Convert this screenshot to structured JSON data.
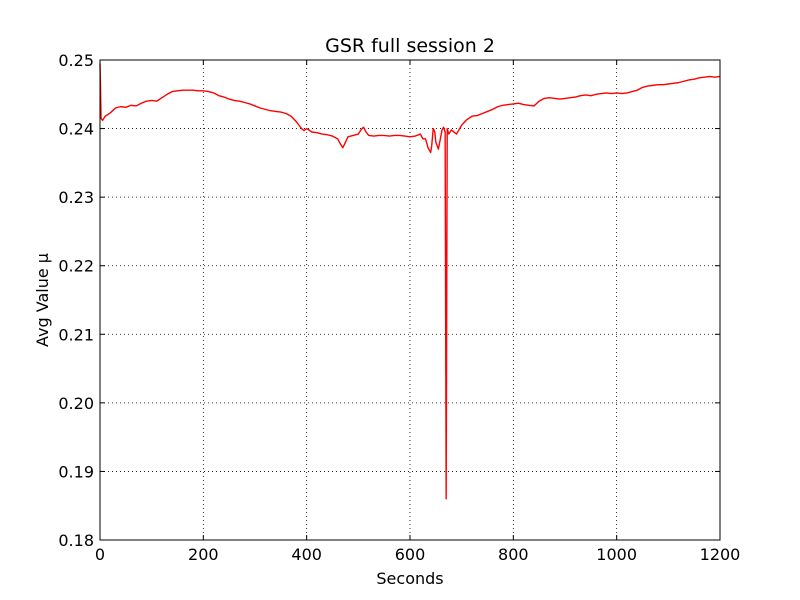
{
  "chart_data": {
    "type": "line",
    "title": "GSR full session 2",
    "xlabel": "Seconds",
    "ylabel": "Avg Value µ",
    "xlim": [
      0,
      1200
    ],
    "ylim": [
      0.18,
      0.25
    ],
    "xticks": [
      0,
      200,
      400,
      600,
      800,
      1000,
      1200
    ],
    "xtick_labels": [
      "0",
      "200",
      "400",
      "600",
      "800",
      "1000",
      "1200"
    ],
    "yticks": [
      0.18,
      0.19,
      0.2,
      0.21,
      0.22,
      0.23,
      0.24,
      0.25
    ],
    "ytick_labels": [
      "0.18",
      "0.19",
      "0.20",
      "0.21",
      "0.22",
      "0.23",
      "0.24",
      "0.25"
    ],
    "grid": true,
    "legend": "none",
    "series": [
      {
        "color": "#ff0000",
        "x": [
          0,
          1,
          2,
          5,
          10,
          20,
          30,
          40,
          50,
          60,
          70,
          80,
          90,
          100,
          110,
          120,
          130,
          140,
          150,
          160,
          170,
          180,
          190,
          200,
          210,
          220,
          230,
          240,
          250,
          260,
          270,
          280,
          290,
          300,
          310,
          320,
          330,
          340,
          350,
          360,
          370,
          380,
          385,
          390,
          395,
          400,
          410,
          420,
          430,
          440,
          450,
          460,
          465,
          470,
          475,
          480,
          490,
          500,
          505,
          510,
          515,
          520,
          530,
          540,
          550,
          560,
          570,
          580,
          590,
          600,
          610,
          620,
          625,
          630,
          635,
          640,
          642,
          645,
          648,
          650,
          655,
          660,
          662,
          665,
          668,
          670,
          672,
          675,
          680,
          690,
          700,
          710,
          720,
          730,
          740,
          750,
          760,
          770,
          780,
          790,
          800,
          810,
          820,
          830,
          840,
          850,
          860,
          870,
          880,
          890,
          900,
          910,
          920,
          930,
          940,
          950,
          960,
          970,
          980,
          990,
          1000,
          1010,
          1020,
          1030,
          1040,
          1050,
          1060,
          1070,
          1080,
          1090,
          1100,
          1110,
          1120,
          1130,
          1140,
          1150,
          1160,
          1170,
          1180,
          1190,
          1200
        ],
        "y": [
          0.2495,
          0.246,
          0.2415,
          0.2412,
          0.2418,
          0.2423,
          0.243,
          0.2432,
          0.2431,
          0.2434,
          0.2433,
          0.2437,
          0.244,
          0.2441,
          0.244,
          0.2445,
          0.245,
          0.2454,
          0.2455,
          0.2456,
          0.2456,
          0.2456,
          0.2455,
          0.2455,
          0.2454,
          0.2452,
          0.2448,
          0.2446,
          0.2443,
          0.2441,
          0.244,
          0.2438,
          0.2436,
          0.2433,
          0.243,
          0.2428,
          0.2426,
          0.2425,
          0.2424,
          0.2422,
          0.2418,
          0.241,
          0.2405,
          0.24,
          0.2397,
          0.24,
          0.2395,
          0.2394,
          0.2392,
          0.2391,
          0.2389,
          0.2385,
          0.2378,
          0.2372,
          0.238,
          0.2388,
          0.239,
          0.2392,
          0.2398,
          0.2402,
          0.2395,
          0.239,
          0.2389,
          0.239,
          0.239,
          0.2389,
          0.239,
          0.239,
          0.2389,
          0.2388,
          0.2389,
          0.2392,
          0.2385,
          0.2385,
          0.2372,
          0.2365,
          0.2375,
          0.24,
          0.2395,
          0.238,
          0.237,
          0.239,
          0.2398,
          0.2402,
          0.2395,
          0.186,
          0.24,
          0.2392,
          0.2398,
          0.2392,
          0.2405,
          0.2413,
          0.2418,
          0.2419,
          0.2422,
          0.2425,
          0.2428,
          0.2432,
          0.2434,
          0.2435,
          0.2436,
          0.2437,
          0.2435,
          0.2434,
          0.2433,
          0.244,
          0.2444,
          0.2445,
          0.2444,
          0.2443,
          0.2444,
          0.2445,
          0.2446,
          0.2448,
          0.2449,
          0.2448,
          0.245,
          0.2451,
          0.2452,
          0.2451,
          0.2452,
          0.2451,
          0.2452,
          0.2454,
          0.2456,
          0.246,
          0.2462,
          0.2463,
          0.2464,
          0.2464,
          0.2465,
          0.2466,
          0.2467,
          0.2469,
          0.2471,
          0.2472,
          0.2474,
          0.2475,
          0.2476,
          0.2475,
          0.2476
        ]
      }
    ]
  }
}
